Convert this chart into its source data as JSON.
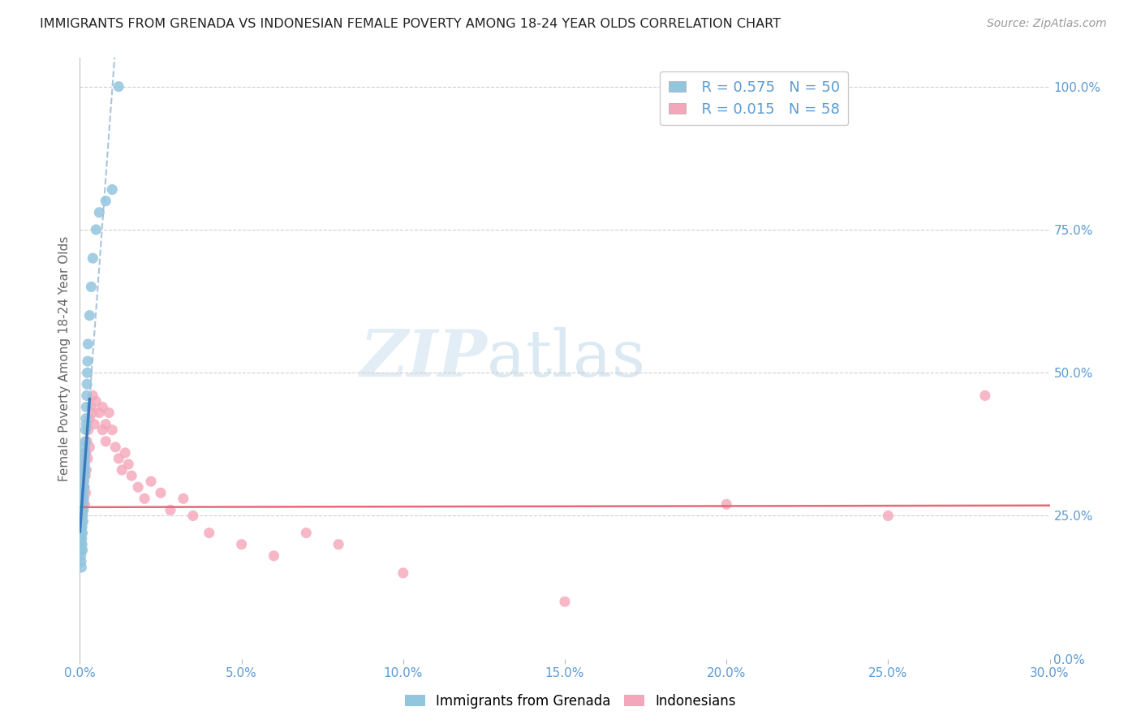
{
  "title": "IMMIGRANTS FROM GRENADA VS INDONESIAN FEMALE POVERTY AMONG 18-24 YEAR OLDS CORRELATION CHART",
  "source": "Source: ZipAtlas.com",
  "ylabel": "Female Poverty Among 18-24 Year Olds",
  "watermark_zip": "ZIP",
  "watermark_atlas": "atlas",
  "legend_blue_R": "R = 0.575",
  "legend_blue_N": "N = 50",
  "legend_pink_R": "R = 0.015",
  "legend_pink_N": "N = 58",
  "blue_color": "#92c5de",
  "pink_color": "#f4a6ba",
  "blue_line_color": "#3a7bbf",
  "pink_line_color": "#e8687a",
  "dashed_line_color": "#aac4de",
  "title_color": "#222222",
  "axis_label_color": "#5b9bd5",
  "grid_color": "#d0d0d0",
  "background_color": "#ffffff",
  "blue_points_x": [
    0.0002,
    0.0003,
    0.0003,
    0.0004,
    0.0004,
    0.0005,
    0.0005,
    0.0005,
    0.0006,
    0.0006,
    0.0007,
    0.0007,
    0.0007,
    0.0008,
    0.0008,
    0.0009,
    0.0009,
    0.001,
    0.001,
    0.001,
    0.0011,
    0.0011,
    0.0012,
    0.0012,
    0.0013,
    0.0013,
    0.0014,
    0.0014,
    0.0015,
    0.0015,
    0.0016,
    0.0016,
    0.0017,
    0.0018,
    0.0019,
    0.002,
    0.002,
    0.0021,
    0.0022,
    0.0023,
    0.0024,
    0.0025,
    0.003,
    0.0035,
    0.004,
    0.005,
    0.006,
    0.008,
    0.01,
    0.012
  ],
  "blue_points_y": [
    0.21,
    0.18,
    0.23,
    0.2,
    0.17,
    0.19,
    0.22,
    0.16,
    0.21,
    0.24,
    0.23,
    0.2,
    0.26,
    0.22,
    0.19,
    0.25,
    0.28,
    0.27,
    0.24,
    0.3,
    0.29,
    0.26,
    0.31,
    0.28,
    0.33,
    0.3,
    0.35,
    0.32,
    0.37,
    0.34,
    0.36,
    0.33,
    0.38,
    0.4,
    0.42,
    0.44,
    0.41,
    0.46,
    0.48,
    0.5,
    0.52,
    0.55,
    0.6,
    0.65,
    0.7,
    0.75,
    0.78,
    0.8,
    0.82,
    1.0
  ],
  "pink_points_x": [
    0.0003,
    0.0004,
    0.0005,
    0.0006,
    0.0007,
    0.0008,
    0.0009,
    0.001,
    0.0011,
    0.0012,
    0.0013,
    0.0014,
    0.0015,
    0.0016,
    0.0017,
    0.0018,
    0.0019,
    0.002,
    0.0022,
    0.0024,
    0.0026,
    0.003,
    0.003,
    0.0035,
    0.004,
    0.004,
    0.0045,
    0.005,
    0.006,
    0.007,
    0.007,
    0.008,
    0.008,
    0.009,
    0.01,
    0.011,
    0.012,
    0.013,
    0.014,
    0.015,
    0.016,
    0.018,
    0.02,
    0.022,
    0.025,
    0.028,
    0.032,
    0.035,
    0.04,
    0.05,
    0.06,
    0.07,
    0.08,
    0.1,
    0.15,
    0.2,
    0.25,
    0.28
  ],
  "pink_points_y": [
    0.27,
    0.3,
    0.28,
    0.25,
    0.32,
    0.29,
    0.26,
    0.33,
    0.28,
    0.31,
    0.34,
    0.3,
    0.27,
    0.35,
    0.32,
    0.29,
    0.36,
    0.33,
    0.38,
    0.35,
    0.4,
    0.42,
    0.37,
    0.44,
    0.43,
    0.46,
    0.41,
    0.45,
    0.43,
    0.4,
    0.44,
    0.41,
    0.38,
    0.43,
    0.4,
    0.37,
    0.35,
    0.33,
    0.36,
    0.34,
    0.32,
    0.3,
    0.28,
    0.31,
    0.29,
    0.26,
    0.28,
    0.25,
    0.22,
    0.2,
    0.18,
    0.22,
    0.2,
    0.15,
    0.1,
    0.27,
    0.25,
    0.46
  ],
  "blue_line_x": [
    0.0,
    0.0025
  ],
  "blue_line_y_start": 0.18,
  "blue_line_slope": 130.0,
  "dash_line_x": [
    0.001,
    0.012
  ],
  "xlim": [
    0.0,
    0.3
  ],
  "ylim": [
    0.0,
    1.05
  ],
  "yticks": [
    0.0,
    0.25,
    0.5,
    0.75,
    1.0
  ],
  "yticklabels": [
    "0.0%",
    "25.0%",
    "50.0%",
    "75.0%",
    "100.0%"
  ],
  "xtick_count": 7,
  "figsize": [
    14.06,
    8.92
  ],
  "dpi": 100
}
